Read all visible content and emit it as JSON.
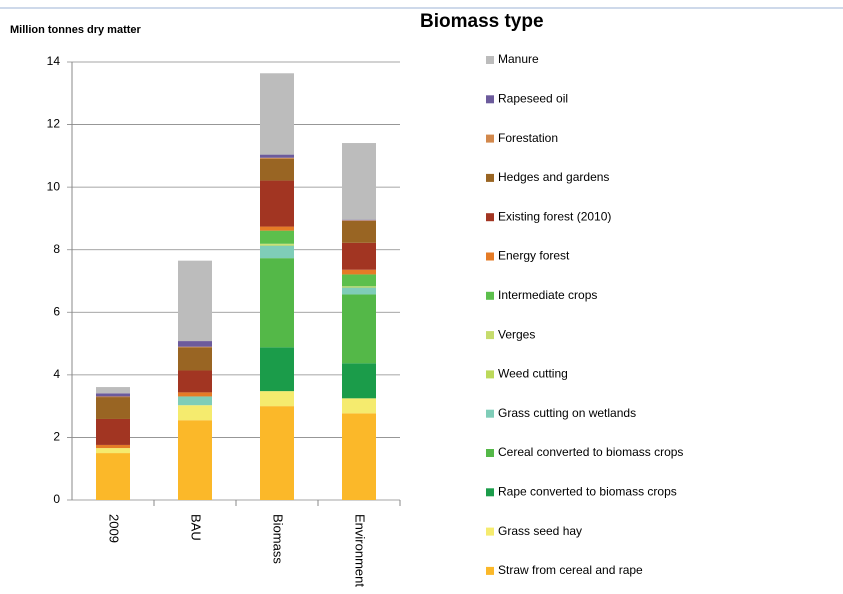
{
  "chart_data": {
    "type": "stacked_bar",
    "title": "Biomass type",
    "y_label": "Million tonnes dry matter",
    "categories": [
      "2009",
      "BAU",
      "Biomass",
      "Environment"
    ],
    "ylim": [
      0,
      14
    ],
    "yticks": [
      0,
      2,
      4,
      6,
      8,
      10,
      12,
      14
    ],
    "grid": true,
    "legend": "right",
    "series": [
      {
        "name": "Straw from cereal and rape",
        "color": "#fbb829",
        "values": [
          1.5,
          2.55,
          3.0,
          2.77
        ]
      },
      {
        "name": "Grass seed hay",
        "color": "#f5eb6e",
        "values": [
          0.16,
          0.48,
          0.48,
          0.48
        ]
      },
      {
        "name": "Rape converted to biomass crops",
        "color": "#1b9c4a",
        "values": [
          0,
          0,
          1.4,
          1.12
        ]
      },
      {
        "name": "Cereal converted to biomass crops",
        "color": "#54b848",
        "values": [
          0,
          0,
          2.85,
          2.2
        ]
      },
      {
        "name": "Grass cutting on wetlands",
        "color": "#7fcdb8",
        "values": [
          0,
          0.28,
          0.4,
          0.22
        ]
      },
      {
        "name": "Weed cutting",
        "color": "#bcd95a",
        "values": [
          0,
          0,
          0.03,
          0.02
        ]
      },
      {
        "name": "Verges",
        "color": "#c6dc6c",
        "values": [
          0,
          0,
          0.03,
          0.02
        ]
      },
      {
        "name": "Intermediate crops",
        "color": "#5cbf4c",
        "values": [
          0,
          0,
          0.42,
          0.38
        ]
      },
      {
        "name": "Energy forest",
        "color": "#e57b26",
        "values": [
          0.1,
          0.13,
          0.13,
          0.15
        ]
      },
      {
        "name": "Existing forest (2010)",
        "color": "#a23522",
        "values": [
          0.83,
          0.7,
          1.47,
          0.86
        ]
      },
      {
        "name": "Hedges and gardens",
        "color": "#996523",
        "values": [
          0.7,
          0.74,
          0.7,
          0.7
        ]
      },
      {
        "name": "Forestation",
        "color": "#d2884c",
        "values": [
          0.02,
          0.02,
          0.03,
          0.02
        ]
      },
      {
        "name": "Rapeseed oil",
        "color": "#6c5b9c",
        "values": [
          0.1,
          0.18,
          0.1,
          0.02
        ]
      },
      {
        "name": "Manure",
        "color": "#bcbcbc",
        "values": [
          0.2,
          2.57,
          2.6,
          2.45
        ]
      }
    ]
  }
}
